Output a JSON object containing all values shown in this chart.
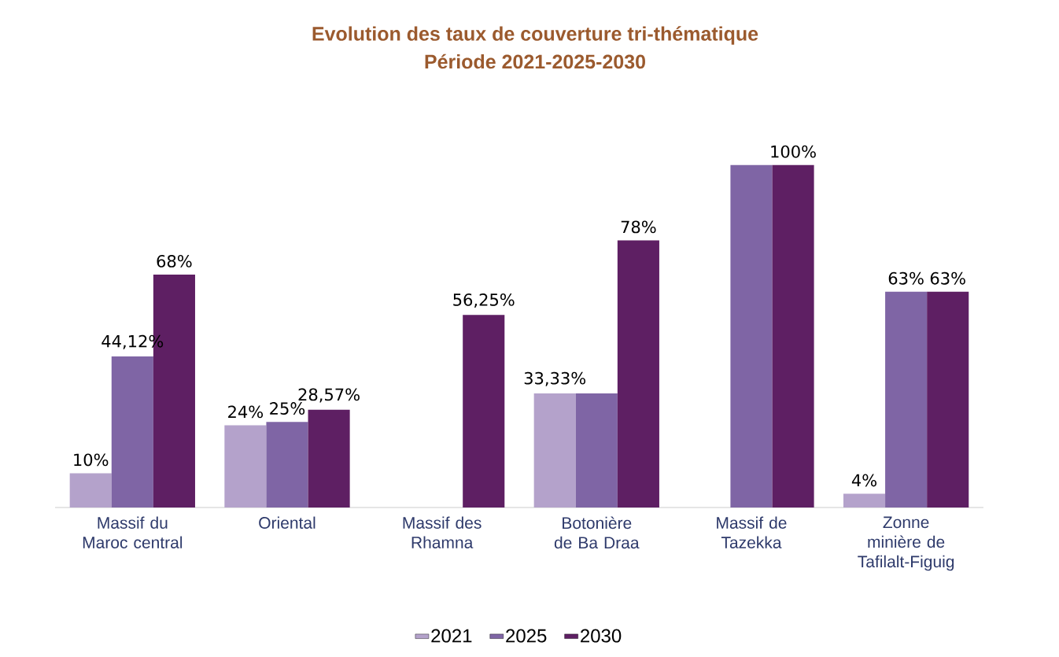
{
  "chart_data": {
    "type": "bar",
    "title": "Evolution des taux de couverture tri-thématique",
    "subtitle": "Période 2021-2025-2030",
    "categories": [
      "Massif du Maroc central",
      "Oriental",
      "Massif des Rhamna",
      "Botonière de Ba Draa",
      "Massif de Tazekka",
      "Zonne minière de Tafilalt-Figuig"
    ],
    "series": [
      {
        "name": "2021",
        "color": "#b4a2cb",
        "values": [
          10,
          24,
          0,
          33.33,
          0,
          4
        ],
        "value_labels": [
          "10%",
          "24%",
          null,
          "33,33%",
          null,
          "4%"
        ]
      },
      {
        "name": "2025",
        "color": "#7f65a5",
        "values": [
          44.12,
          25,
          0,
          33.33,
          100,
          63
        ],
        "value_labels": [
          "44,12%",
          "25%",
          null,
          null,
          null,
          "63%"
        ]
      },
      {
        "name": "2030",
        "color": "#5e1f63",
        "values": [
          68,
          28.57,
          56.25,
          78,
          100,
          63
        ],
        "value_labels": [
          "68%",
          "28,57%",
          "56,25%",
          "78%",
          "100%",
          "63%"
        ]
      }
    ],
    "legend": "bottom"
  }
}
